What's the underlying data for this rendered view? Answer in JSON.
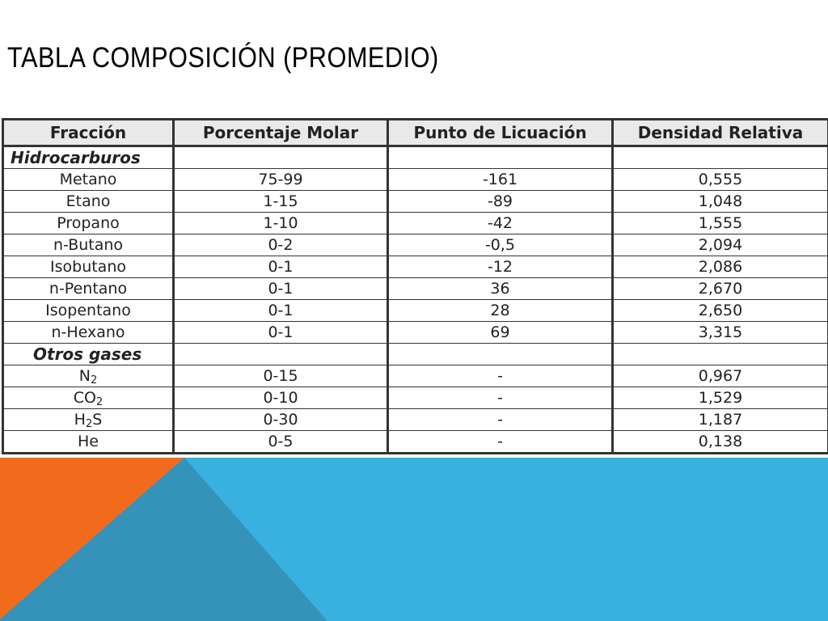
{
  "slide": {
    "title": "TABLA COMPOSICIÓN  (PROMEDIO)"
  },
  "table": {
    "headers": [
      "Fracción",
      "Porcentaje Molar",
      "Punto de Licuación",
      "Densidad Relativa"
    ],
    "sections": [
      {
        "label": "Hidrocarburos",
        "rows": [
          {
            "name": "Metano",
            "molar": "75-99",
            "licuacion": "-161",
            "densidad": "0,555"
          },
          {
            "name": "Etano",
            "molar": "1-15",
            "licuacion": "-89",
            "densidad": "1,048"
          },
          {
            "name": "Propano",
            "molar": "1-10",
            "licuacion": "-42",
            "densidad": "1,555"
          },
          {
            "name": "n-Butano",
            "molar": "0-2",
            "licuacion": "-0,5",
            "densidad": "2,094"
          },
          {
            "name": "Isobutano",
            "molar": "0-1",
            "licuacion": "-12",
            "densidad": "2,086"
          },
          {
            "name": "n-Pentano",
            "molar": "0-1",
            "licuacion": "36",
            "densidad": "2,670"
          },
          {
            "name": "Isopentano",
            "molar": "0-1",
            "licuacion": "28",
            "densidad": "2,650"
          },
          {
            "name": "n-Hexano",
            "molar": "0-1",
            "licuacion": "69",
            "densidad": "3,315"
          }
        ]
      },
      {
        "label": "Otros gases",
        "rows": [
          {
            "name_main": "N",
            "name_sub": "2",
            "name_tail": "",
            "molar": "0-15",
            "licuacion": "-",
            "densidad": "0,967"
          },
          {
            "name_main": "CO",
            "name_sub": "2",
            "name_tail": "",
            "molar": "0-10",
            "licuacion": "-",
            "densidad": "1,529"
          },
          {
            "name_main": "H",
            "name_sub": "2",
            "name_tail": "S",
            "molar": "0-30",
            "licuacion": "-",
            "densidad": "1,187"
          },
          {
            "name_main": "He",
            "name_sub": "",
            "name_tail": "",
            "molar": "0-5",
            "licuacion": "-",
            "densidad": "0,138"
          }
        ]
      }
    ]
  },
  "colors": {
    "orange": "#f26b1d",
    "teal": "#3592b8",
    "sky": "#38b1e0"
  }
}
